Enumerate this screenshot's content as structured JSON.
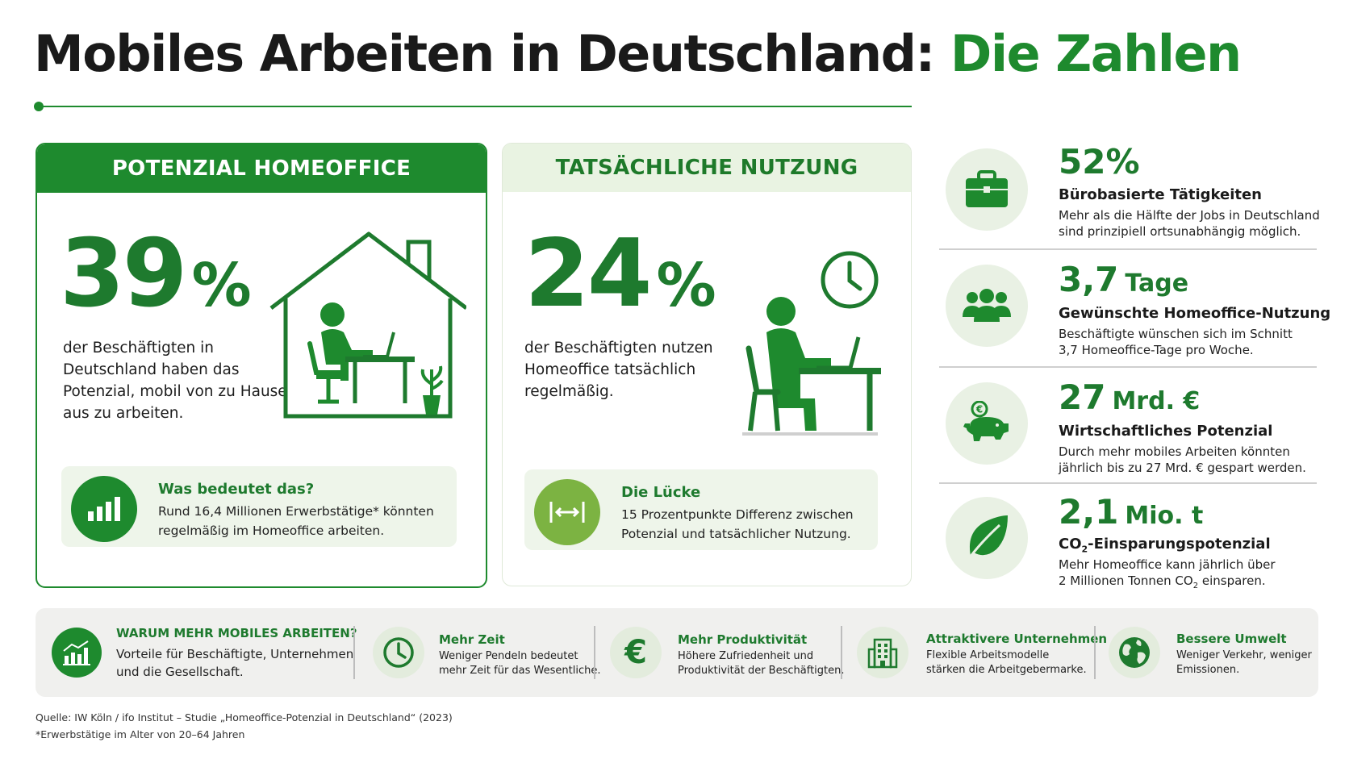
{
  "title": {
    "main": "Mobiles Arbeiten in Deutschland: ",
    "highlight": "Die Zahlen"
  },
  "potential": {
    "header": "POTENZIAL HOMEOFFICE",
    "value": "39",
    "unit": "%",
    "desc": [
      "der Beschäftigten in",
      "Deutschland haben das",
      "Potenzial, mobil von zu Hause",
      "aus zu arbeiten."
    ],
    "box_title": "Was bedeutet das?",
    "box_text": [
      "Rund 16,4 Millionen Erwerbstätige* könnten",
      "regelmäßig im Homeoffice arbeiten."
    ]
  },
  "usage": {
    "header": "TATSÄCHLICHE NUTZUNG",
    "value": "24",
    "unit": "%",
    "desc": [
      "der Beschäftigten nutzen",
      "Homeoffice tatsächlich",
      "regelmäßig."
    ],
    "box_title": "Die Lücke",
    "box_text": [
      "15 Prozentpunkte Differenz zwischen",
      "Potenzial und tatsächlicher Nutzung."
    ]
  },
  "stats": [
    {
      "value": "52%",
      "unit": "",
      "icon": "briefcase-icon",
      "title": "Bürobasierte Tätigkeiten",
      "text": [
        "Mehr als die Hälfte der Jobs in Deutschland",
        "sind prinzipiell ortsunabhängig möglich."
      ]
    },
    {
      "value": "3,7",
      "unit": "Tage",
      "icon": "people-icon",
      "title": "Gewünschte Homeoffice-Nutzung",
      "text": [
        "Beschäftigte wünschen sich im Schnitt",
        "3,7 Homeoffice-Tage pro Woche."
      ]
    },
    {
      "value": "27",
      "unit": "Mrd. €",
      "icon": "piggy-bank-icon",
      "title": "Wirtschaftliches Potenzial",
      "text": [
        "Durch mehr mobiles Arbeiten könnten",
        "jährlich bis zu 27 Mrd. € gespart werden."
      ]
    },
    {
      "value": "2,1",
      "unit": "Mio. t",
      "icon": "leaf-icon",
      "title_prefix": "CO",
      "title_sub": "2",
      "title_suffix": "-Einsparungspotenzial",
      "text_line1": "Mehr Homeoffice kann jährlich über",
      "text_line2_prefix": "2 Millionen Tonnen CO",
      "text_line2_sub": "2",
      "text_line2_suffix": " einsparen."
    }
  ],
  "bottom": {
    "heading": "WARUM MEHR MOBILES ARBEITEN?",
    "heading_text": [
      "Vorteile für Beschäftigte, Unternehmen",
      "und die Gesellschaft."
    ],
    "items": [
      {
        "icon": "clock-icon",
        "title": "Mehr Zeit",
        "text": [
          "Weniger Pendeln bedeutet",
          "mehr Zeit für das Wesentliche."
        ]
      },
      {
        "icon": "euro-icon",
        "title": "Mehr Produktivität",
        "text": [
          "Höhere Zufriedenheit und",
          "Produktivität der Beschäftigten."
        ]
      },
      {
        "icon": "building-icon",
        "title": "Attraktivere Unternehmen",
        "text": [
          "Flexible Arbeitsmodelle",
          "stärken die Arbeitgebermarke."
        ]
      },
      {
        "icon": "globe-icon",
        "title": "Bessere Umwelt",
        "text": [
          "Weniger Verkehr, weniger",
          "Emissionen."
        ]
      }
    ]
  },
  "footer": {
    "source": "Quelle: IW Köln / ifo Institut – Studie „Homeoffice-Potenzial in Deutschland“ (2023)",
    "note": "*Erwerbstätige im Alter von 20–64 Jahren"
  },
  "colors": {
    "accent": "#1e8a2e",
    "dark_green": "#1e7a2e",
    "light_green": "#e9f3e2",
    "lime": "#7cb342"
  }
}
